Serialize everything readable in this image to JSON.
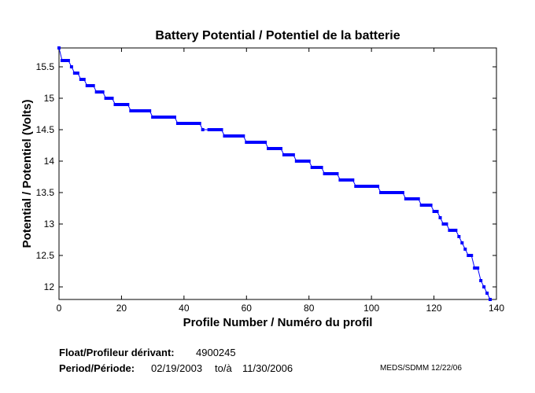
{
  "chart_data": {
    "type": "line",
    "title": "Battery Potential / Potentiel de la batterie",
    "xlabel": "Profile Number / Numéro du profil",
    "ylabel": "Potential / Potentiel (Volts)",
    "xlim": [
      0,
      140
    ],
    "ylim": [
      11.8,
      15.8
    ],
    "xticks": [
      0,
      20,
      40,
      60,
      80,
      100,
      120,
      140
    ],
    "xtick_labels": [
      "0",
      "20",
      "40",
      "60",
      "80",
      "100",
      "120",
      "140"
    ],
    "yticks": [
      12,
      12.5,
      13,
      13.5,
      14,
      14.5,
      15,
      15.5
    ],
    "ytick_labels": [
      "12",
      "12.5",
      "13",
      "13.5",
      "14",
      "14.5",
      "15",
      "15.5"
    ],
    "grid": false,
    "series_color": "#0000ff",
    "levels": [
      {
        "x_start": 0,
        "x_end": 0,
        "y": 15.8
      },
      {
        "x_start": 1,
        "x_end": 3,
        "y": 15.6
      },
      {
        "x_start": 4,
        "x_end": 4,
        "y": 15.5
      },
      {
        "x_start": 5,
        "x_end": 6,
        "y": 15.4
      },
      {
        "x_start": 7,
        "x_end": 8,
        "y": 15.3
      },
      {
        "x_start": 9,
        "x_end": 11,
        "y": 15.2
      },
      {
        "x_start": 12,
        "x_end": 14,
        "y": 15.1
      },
      {
        "x_start": 15,
        "x_end": 17,
        "y": 15.0
      },
      {
        "x_start": 18,
        "x_end": 22,
        "y": 14.9
      },
      {
        "x_start": 23,
        "x_end": 29,
        "y": 14.8
      },
      {
        "x_start": 30,
        "x_end": 37,
        "y": 14.7
      },
      {
        "x_start": 38,
        "x_end": 45,
        "y": 14.6
      },
      {
        "x_start": 46,
        "x_end": 46,
        "y": 14.5
      },
      {
        "x_start": 48,
        "x_end": 52,
        "y": 14.5
      },
      {
        "x_start": 53,
        "x_end": 59,
        "y": 14.4
      },
      {
        "x_start": 60,
        "x_end": 66,
        "y": 14.3
      },
      {
        "x_start": 67,
        "x_end": 71,
        "y": 14.2
      },
      {
        "x_start": 72,
        "x_end": 75,
        "y": 14.1
      },
      {
        "x_start": 76,
        "x_end": 80,
        "y": 14.0
      },
      {
        "x_start": 81,
        "x_end": 84,
        "y": 13.9
      },
      {
        "x_start": 85,
        "x_end": 89,
        "y": 13.8
      },
      {
        "x_start": 90,
        "x_end": 94,
        "y": 13.7
      },
      {
        "x_start": 95,
        "x_end": 102,
        "y": 13.6
      },
      {
        "x_start": 103,
        "x_end": 110,
        "y": 13.5
      },
      {
        "x_start": 111,
        "x_end": 115,
        "y": 13.4
      },
      {
        "x_start": 116,
        "x_end": 119,
        "y": 13.3
      },
      {
        "x_start": 120,
        "x_end": 121,
        "y": 13.2
      },
      {
        "x_start": 122,
        "x_end": 122,
        "y": 13.1
      },
      {
        "x_start": 123,
        "x_end": 124,
        "y": 13.0
      },
      {
        "x_start": 125,
        "x_end": 127,
        "y": 12.9
      },
      {
        "x_start": 128,
        "x_end": 128,
        "y": 12.8
      },
      {
        "x_start": 129,
        "x_end": 129,
        "y": 12.7
      },
      {
        "x_start": 130,
        "x_end": 130,
        "y": 12.6
      },
      {
        "x_start": 131,
        "x_end": 132,
        "y": 12.5
      },
      {
        "x_start": 133,
        "x_end": 134,
        "y": 12.3
      },
      {
        "x_start": 135,
        "x_end": 135,
        "y": 12.1
      },
      {
        "x_start": 136,
        "x_end": 136,
        "y": 12.0
      },
      {
        "x_start": 137,
        "x_end": 137,
        "y": 11.9
      },
      {
        "x_start": 138,
        "x_end": 138,
        "y": 11.8
      }
    ]
  },
  "footer": {
    "float_label": "Float/Profileur dérivant:",
    "float_value": "4900245",
    "period_label": "Period/Période:",
    "period_start": "02/19/2003",
    "period_to": "to/à",
    "period_end": "11/30/2006",
    "credit": "MEDS/SDMM  12/22/06"
  }
}
